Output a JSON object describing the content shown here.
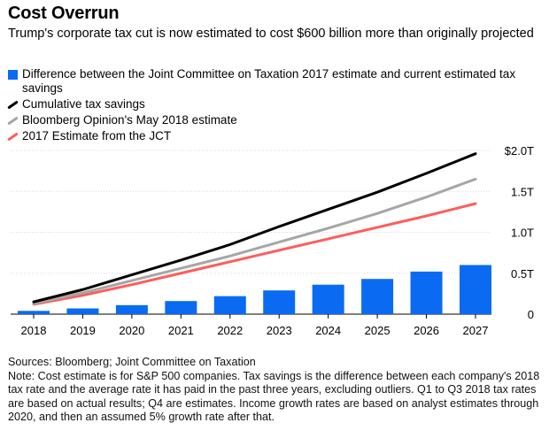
{
  "title": "Cost Overrun",
  "subtitle": "Trump's corporate tax cut is now estimated to cost $600 billion more than originally projected",
  "legend": [
    {
      "label": "Difference between the Joint Committee on Taxation 2017 estimate and current estimated tax savings",
      "kind": "bar",
      "color": "#0a6bf2"
    },
    {
      "label": "Cumulative tax savings",
      "kind": "line",
      "color": "#000000"
    },
    {
      "label": "Bloomberg Opinion's May 2018 estimate",
      "kind": "line",
      "color": "#a6a6a6"
    },
    {
      "label": "2017 Estimate from the JCT",
      "kind": "line",
      "color": "#ff5c5c"
    }
  ],
  "chart_data": {
    "type": "bar",
    "categories": [
      "2018",
      "2019",
      "2020",
      "2021",
      "2022",
      "2023",
      "2024",
      "2025",
      "2026",
      "2027"
    ],
    "ylim": [
      0,
      2.0
    ],
    "yticks": [
      0,
      0.5,
      1.0,
      1.5,
      2.0
    ],
    "ytick_labels": [
      "0",
      "0.5T",
      "1.0T",
      "1.5T",
      "$2.0T"
    ],
    "grid": true,
    "legend_position": "top",
    "series": [
      {
        "name": "Difference between the Joint Committee on Taxation 2017 estimate and current estimated tax savings",
        "kind": "bar",
        "color": "#0a6bf2",
        "values": [
          0.04,
          0.07,
          0.11,
          0.16,
          0.22,
          0.29,
          0.36,
          0.43,
          0.52,
          0.6
        ]
      },
      {
        "name": "Cumulative tax savings",
        "kind": "line",
        "color": "#000000",
        "values": [
          0.15,
          0.3,
          0.48,
          0.66,
          0.85,
          1.07,
          1.28,
          1.49,
          1.72,
          1.96
        ]
      },
      {
        "name": "Bloomberg Opinion's May 2018 estimate",
        "kind": "line",
        "color": "#a6a6a6",
        "values": [
          0.13,
          0.26,
          0.41,
          0.56,
          0.71,
          0.88,
          1.05,
          1.23,
          1.43,
          1.65
        ]
      },
      {
        "name": "2017 Estimate from the JCT",
        "kind": "line",
        "color": "#ff5c5c",
        "values": [
          0.12,
          0.23,
          0.36,
          0.5,
          0.64,
          0.78,
          0.92,
          1.06,
          1.2,
          1.35
        ]
      }
    ]
  },
  "sources": "Sources: Bloomberg; Joint Committee on Taxation",
  "note": "Note: Cost estimate is for S&P 500 companies. Tax savings is the difference between each company's 2018 tax rate and the average rate it has paid in the past three years, excluding outliers. Q1 to Q3 2018 tax rates are based on actual results; Q4 are estimates. Income growth rates are based on analyst estimates through 2020, and then an assumed 5% growth rate after that."
}
